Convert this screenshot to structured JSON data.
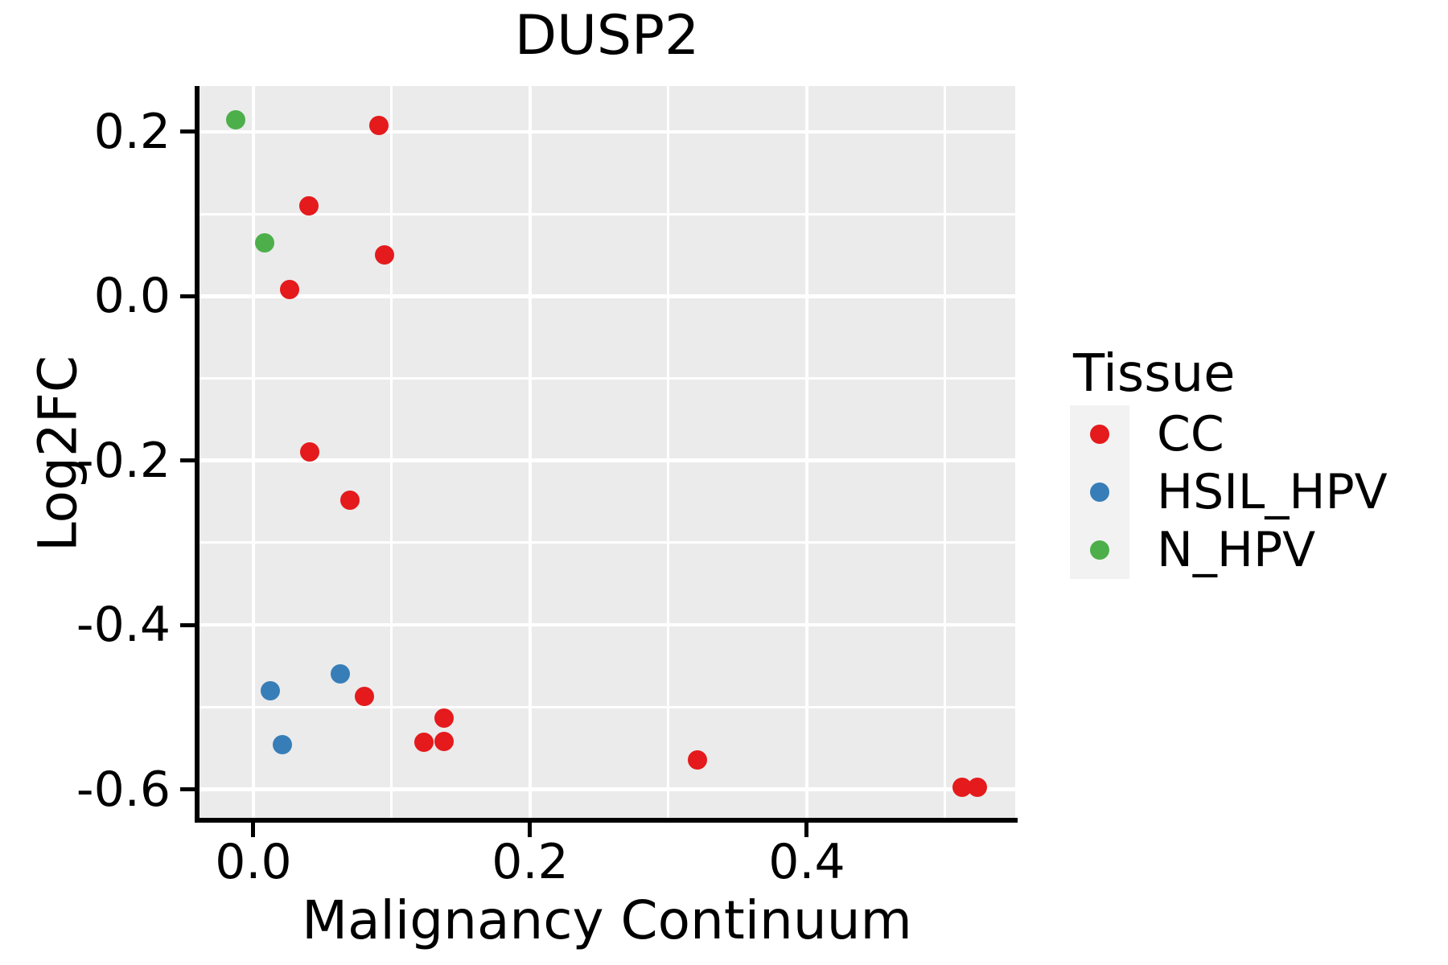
{
  "title": "DUSP2",
  "axes": {
    "x": {
      "label": "Malignancy Continuum",
      "tick_labels": [
        "0.0",
        "0.2",
        "0.4"
      ],
      "tick_values": [
        0.0,
        0.2,
        0.4
      ],
      "minor_values": [
        0.1,
        0.3,
        0.5
      ]
    },
    "y": {
      "label": "Log2FC",
      "tick_labels": [
        "0.2",
        "0.0",
        "-0.2",
        "-0.4",
        "-0.6"
      ],
      "tick_values": [
        0.2,
        0.0,
        -0.2,
        -0.4,
        -0.6
      ],
      "minor_values": [
        0.1,
        -0.1,
        -0.3,
        -0.5
      ]
    }
  },
  "legend": {
    "title": "Tissue",
    "items": [
      {
        "label": "CC",
        "color": "#E41A1C"
      },
      {
        "label": "HSIL_HPV",
        "color": "#377EB8"
      },
      {
        "label": "N_HPV",
        "color": "#4DAF4A"
      }
    ]
  },
  "colors": {
    "panel_bg": "#EBEBEB",
    "grid": "#FFFFFF",
    "axis": "#000000",
    "text": "#000000",
    "legend_key_bg": "#F2F2F2",
    "cc": "#E41A1C",
    "hsil_hpv": "#377EB8",
    "n_hpv": "#4DAF4A"
  },
  "chart_data": {
    "type": "scatter",
    "title": "DUSP2",
    "xlabel": "Malignancy Continuum",
    "ylabel": "Log2FC",
    "xlim": [
      -0.04,
      0.55
    ],
    "ylim": [
      -0.64,
      0.26
    ],
    "grid": "on",
    "legend_position": "right",
    "legend_title": "Tissue",
    "series": [
      {
        "name": "CC",
        "color": "#E41A1C",
        "points": [
          [
            0.091,
            0.208
          ],
          [
            0.04,
            0.11
          ],
          [
            0.095,
            0.05
          ],
          [
            0.026,
            0.008
          ],
          [
            0.041,
            -0.19
          ],
          [
            0.07,
            -0.248
          ],
          [
            0.08,
            -0.487
          ],
          [
            0.138,
            -0.513
          ],
          [
            0.123,
            -0.543
          ],
          [
            0.138,
            -0.542
          ],
          [
            0.321,
            -0.564
          ],
          [
            0.512,
            -0.597
          ],
          [
            0.523,
            -0.597
          ]
        ]
      },
      {
        "name": "HSIL_HPV",
        "color": "#377EB8",
        "points": [
          [
            0.012,
            -0.48
          ],
          [
            0.063,
            -0.46
          ],
          [
            0.021,
            -0.546
          ]
        ]
      },
      {
        "name": "N_HPV",
        "color": "#4DAF4A",
        "points": [
          [
            -0.013,
            0.215
          ],
          [
            0.008,
            0.065
          ]
        ]
      }
    ]
  }
}
